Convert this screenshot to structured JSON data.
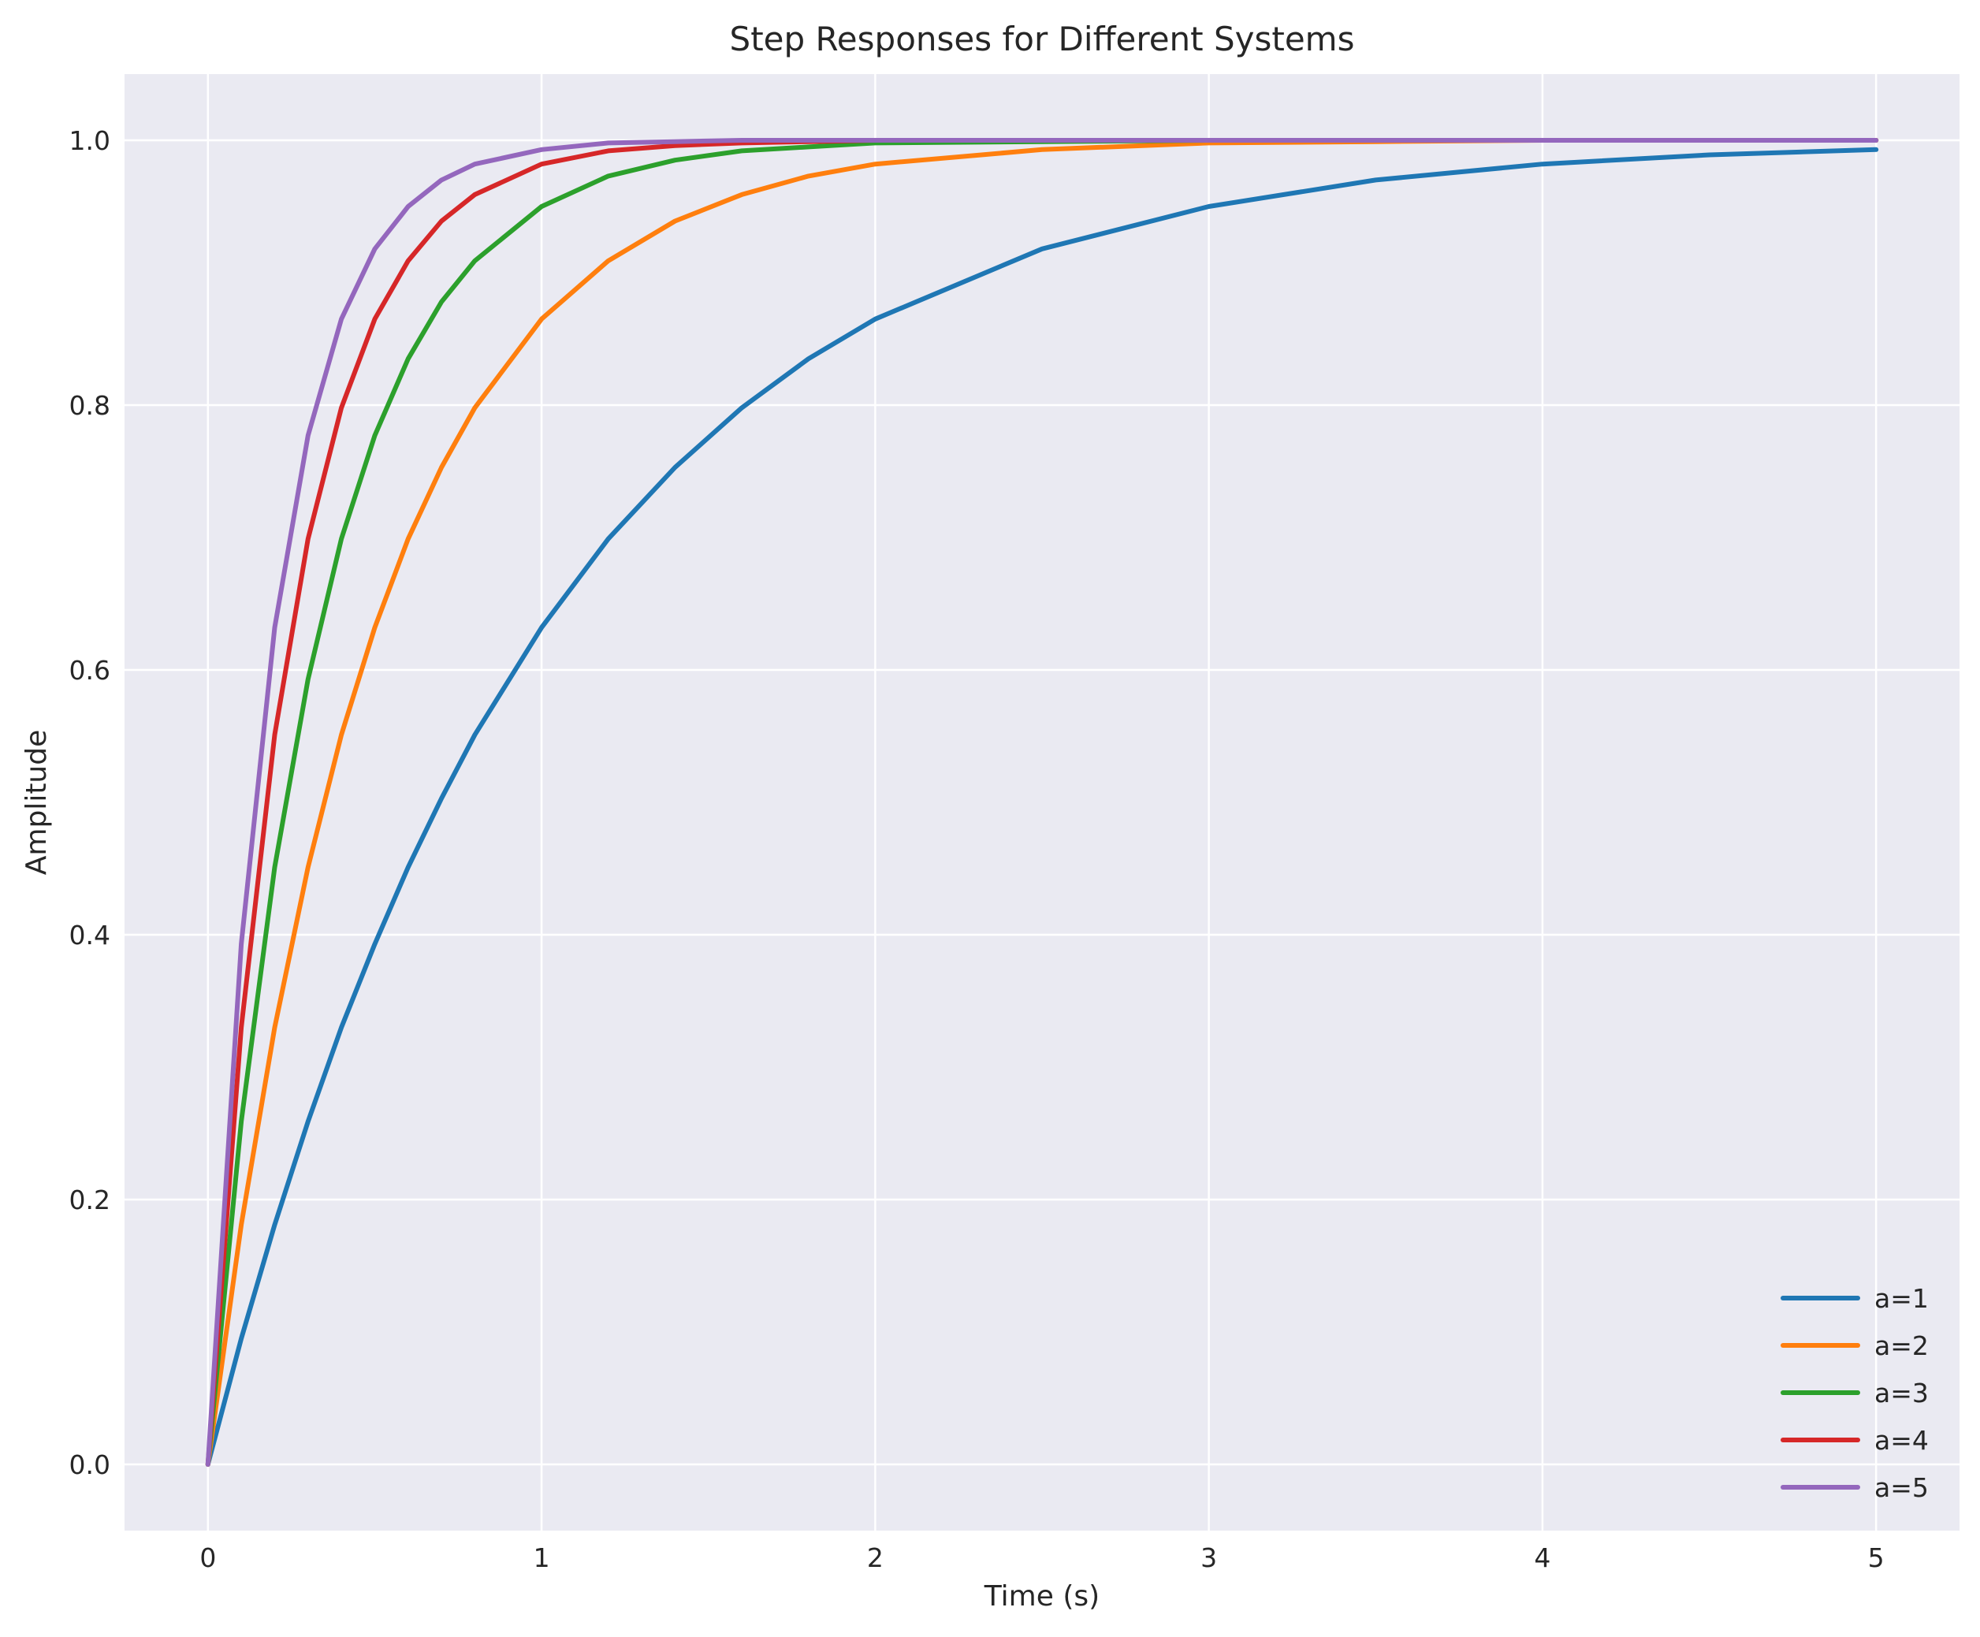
{
  "chart_data": {
    "type": "line",
    "title": "Step Responses for Different Systems",
    "xlabel": "Time (s)",
    "ylabel": "Amplitude",
    "xlim": [
      -0.25,
      5.25
    ],
    "ylim": [
      -0.05,
      1.05
    ],
    "xticks": [
      0,
      1,
      2,
      3,
      4,
      5
    ],
    "xtick_labels": [
      "0",
      "1",
      "2",
      "3",
      "4",
      "5"
    ],
    "yticks": [
      0.0,
      0.2,
      0.4,
      0.6,
      0.8,
      1.0
    ],
    "ytick_labels": [
      "0.0",
      "0.2",
      "0.4",
      "0.6",
      "0.8",
      "1.0"
    ],
    "grid": true,
    "legend_position": "lower-right",
    "background": "#eaeaf2",
    "grid_color": "#ffffff",
    "x": [
      0,
      0.1,
      0.2,
      0.3,
      0.4,
      0.5,
      0.6,
      0.7,
      0.8,
      1.0,
      1.2,
      1.4,
      1.6,
      1.8,
      2.0,
      2.5,
      3.0,
      3.5,
      4.0,
      4.5,
      5.0
    ],
    "series": [
      {
        "name": "a=1",
        "color": "#1f77b4",
        "values": [
          0,
          0.095,
          0.181,
          0.259,
          0.33,
          0.393,
          0.451,
          0.503,
          0.551,
          0.632,
          0.699,
          0.753,
          0.798,
          0.835,
          0.865,
          0.918,
          0.95,
          0.97,
          0.982,
          0.989,
          0.993
        ]
      },
      {
        "name": "a=2",
        "color": "#ff7f0e",
        "values": [
          0,
          0.181,
          0.33,
          0.451,
          0.551,
          0.632,
          0.699,
          0.753,
          0.798,
          0.865,
          0.909,
          0.939,
          0.959,
          0.973,
          0.982,
          0.993,
          0.998,
          0.999,
          1.0,
          1.0,
          1.0
        ]
      },
      {
        "name": "a=3",
        "color": "#2ca02c",
        "values": [
          0,
          0.259,
          0.451,
          0.593,
          0.699,
          0.777,
          0.835,
          0.878,
          0.909,
          0.95,
          0.973,
          0.985,
          0.992,
          0.995,
          0.998,
          0.999,
          1.0,
          1.0,
          1.0,
          1.0,
          1.0
        ]
      },
      {
        "name": "a=4",
        "color": "#d62728",
        "values": [
          0,
          0.33,
          0.551,
          0.699,
          0.798,
          0.865,
          0.909,
          0.939,
          0.959,
          0.982,
          0.992,
          0.996,
          0.998,
          0.999,
          1.0,
          1.0,
          1.0,
          1.0,
          1.0,
          1.0,
          1.0
        ]
      },
      {
        "name": "a=5",
        "color": "#9467bd",
        "values": [
          0,
          0.393,
          0.632,
          0.777,
          0.865,
          0.918,
          0.95,
          0.97,
          0.982,
          0.993,
          0.998,
          0.999,
          1.0,
          1.0,
          1.0,
          1.0,
          1.0,
          1.0,
          1.0,
          1.0,
          1.0
        ]
      }
    ]
  }
}
